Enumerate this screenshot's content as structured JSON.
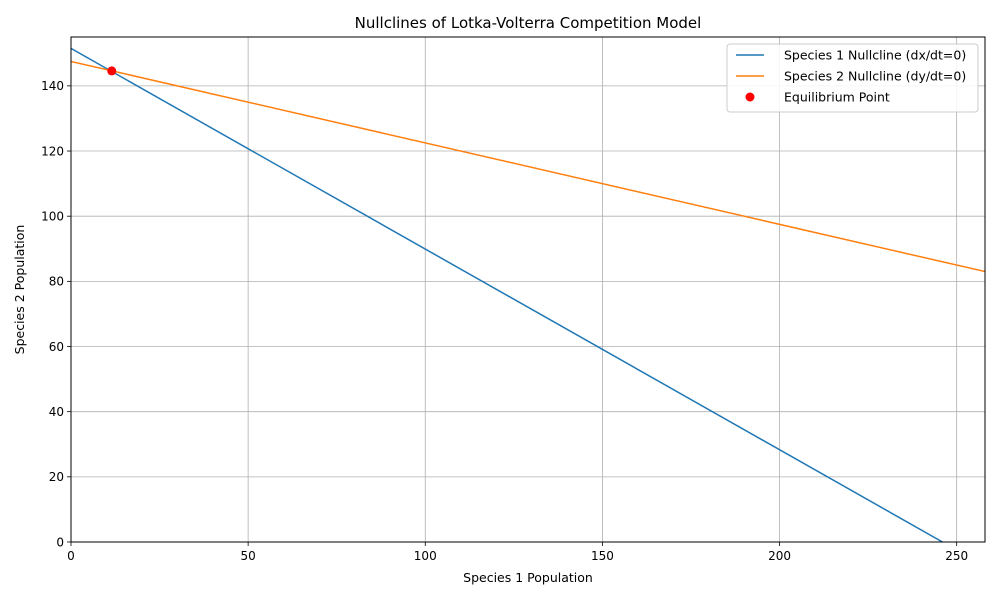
{
  "chart_data": {
    "type": "line",
    "title": "Nullclines of Lotka-Volterra Competition Model",
    "xlabel": "Species 1 Population",
    "ylabel": "Species 2 Population",
    "xlim": [
      0,
      258
    ],
    "ylim": [
      0,
      155
    ],
    "xticks": [
      0,
      50,
      100,
      150,
      200,
      250
    ],
    "yticks": [
      0,
      20,
      40,
      60,
      80,
      100,
      120,
      140
    ],
    "grid": true,
    "legend_position": "top-right",
    "series": [
      {
        "name": "Species 1 Nullcline (dx/dt=0)",
        "color": "#1f77b4",
        "kind": "line",
        "x": [
          0,
          246
        ],
        "y": [
          151.5,
          0
        ]
      },
      {
        "name": "Species 2 Nullcline (dy/dt=0)",
        "color": "#ff7f0e",
        "kind": "line",
        "x": [
          0,
          258
        ],
        "y": [
          147.5,
          83
        ]
      },
      {
        "name": "Equilibrium Point",
        "color": "#ff0000",
        "kind": "point",
        "x": [
          11.5
        ],
        "y": [
          144.6
        ]
      }
    ]
  }
}
